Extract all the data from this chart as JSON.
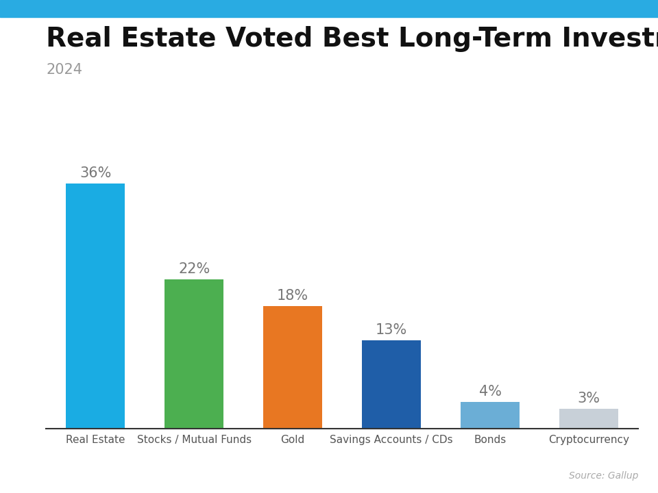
{
  "title": "Real Estate Voted Best Long-Term Investment",
  "subtitle": "2024",
  "categories": [
    "Real Estate",
    "Stocks / Mutual Funds",
    "Gold",
    "Savings Accounts / CDs",
    "Bonds",
    "Cryptocurrency"
  ],
  "values": [
    36,
    22,
    18,
    13,
    4,
    3
  ],
  "labels": [
    "36%",
    "22%",
    "18%",
    "13%",
    "4%",
    "3%"
  ],
  "bar_colors": [
    "#1AACE3",
    "#4CAF50",
    "#E87722",
    "#1F5EA8",
    "#6BAED6",
    "#C8D0D8"
  ],
  "background_color": "#FFFFFF",
  "title_fontsize": 28,
  "subtitle_fontsize": 15,
  "label_fontsize": 15,
  "tick_fontsize": 11,
  "source_text": "Source: Gallup",
  "ylim": [
    0,
    42
  ],
  "top_stripe_color": "#29ABE2",
  "subtitle_color": "#999999",
  "label_color": "#777777"
}
